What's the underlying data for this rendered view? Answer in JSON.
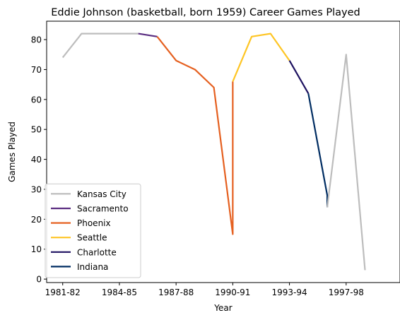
{
  "chart_data": {
    "type": "line",
    "title": "Eddie Johnson (basketball, born 1959) Career Games Played",
    "xlabel": "Year",
    "ylabel": "Games Played",
    "xlim": [
      -0.85,
      17.85
    ],
    "ylim": [
      -1.15,
      86.15
    ],
    "x_tick_positions": [
      0,
      3,
      6,
      9,
      12,
      15
    ],
    "x_tick_labels": [
      "1981-82",
      "1984-85",
      "1987-88",
      "1990-91",
      "1993-94",
      "1997-98"
    ],
    "y_ticks": [
      0,
      10,
      20,
      30,
      40,
      50,
      60,
      70,
      80
    ],
    "grid": false,
    "legend_position": "lower-left",
    "series": [
      {
        "name": "Kansas City",
        "color": "#bdbdbd",
        "x": [
          0,
          1,
          2,
          3,
          4
        ],
        "y": [
          74,
          82,
          82,
          82,
          82
        ]
      },
      {
        "name": "Sacramento",
        "color": "#5a2d81",
        "x": [
          4,
          5
        ],
        "y": [
          82,
          81
        ]
      },
      {
        "name": "Phoenix",
        "color": "#e56020",
        "x": [
          5,
          6,
          7,
          8,
          9,
          9
        ],
        "y": [
          81,
          73,
          70,
          64,
          15,
          66
        ]
      },
      {
        "name": "Seattle",
        "color": "#fec524",
        "x": [
          9,
          10,
          11,
          12
        ],
        "y": [
          66,
          81,
          82,
          73
        ]
      },
      {
        "name": "Charlotte",
        "color": "#1d1160",
        "x": [
          12,
          13
        ],
        "y": [
          73,
          62
        ]
      },
      {
        "name": "Indiana",
        "color": "#002d62",
        "x": [
          13,
          14,
          14
        ],
        "y": [
          62,
          28,
          24
        ]
      },
      {
        "name": "",
        "color": "#bdbdbd",
        "x": [
          14,
          15,
          16
        ],
        "y": [
          24,
          75,
          3
        ]
      }
    ]
  }
}
